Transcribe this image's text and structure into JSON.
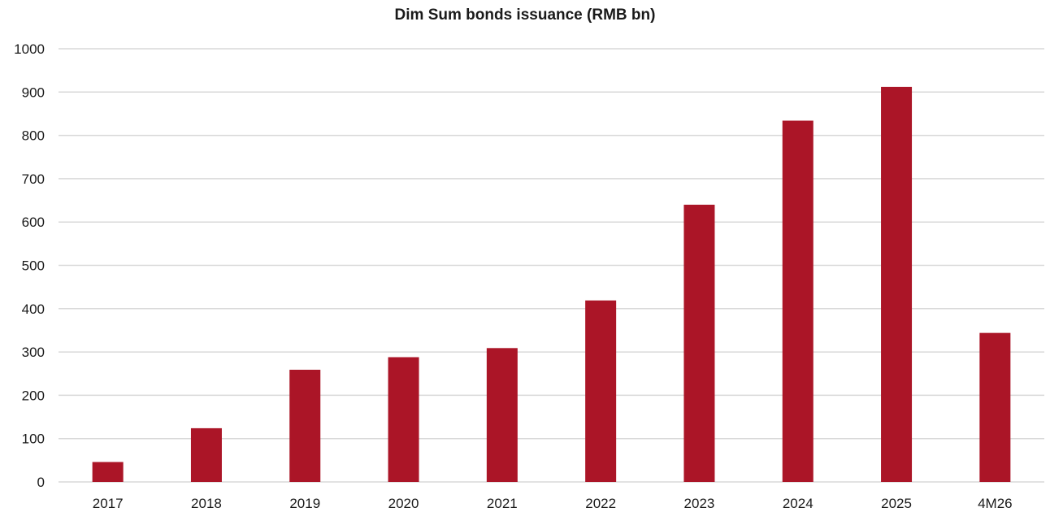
{
  "chart_data": {
    "type": "bar",
    "title": "Dim Sum bonds issuance (RMB bn)",
    "xlabel": "",
    "ylabel": "",
    "categories": [
      "2017",
      "2018",
      "2019",
      "2020",
      "2021",
      "2022",
      "2023",
      "2024",
      "2025",
      "4M26"
    ],
    "values": [
      46,
      124,
      259,
      288,
      309,
      419,
      640,
      834,
      912,
      344
    ],
    "ylim": [
      0,
      1000
    ],
    "yticks": [
      0,
      100,
      200,
      300,
      400,
      500,
      600,
      700,
      800,
      900,
      1000
    ],
    "grid": true,
    "legend": "none",
    "colors": {
      "bar": "#ab1527",
      "grid": "#d9d9d9",
      "text": "#1a1a1a"
    }
  }
}
